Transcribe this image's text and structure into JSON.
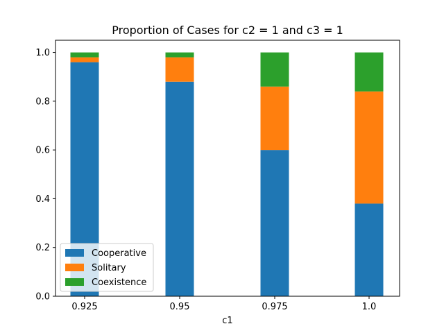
{
  "chart_data": {
    "type": "bar",
    "stacked": true,
    "title": "Proportion of Cases for c2 = 1 and c3 = 1",
    "xlabel": "c1",
    "ylabel": "",
    "categories": [
      "0.925",
      "0.95",
      "0.975",
      "1.0"
    ],
    "ylim": [
      0,
      1.05
    ],
    "yticks": [
      "0.0",
      "0.2",
      "0.4",
      "0.6",
      "0.8",
      "1.0"
    ],
    "grid": false,
    "legend_position": "lower-left",
    "series": [
      {
        "name": "Cooperative",
        "color": "#1f77b4",
        "values": [
          0.96,
          0.88,
          0.6,
          0.38
        ]
      },
      {
        "name": "Solitary",
        "color": "#ff7f0e",
        "values": [
          0.02,
          0.1,
          0.26,
          0.46
        ]
      },
      {
        "name": "Coexistence",
        "color": "#2ca02c",
        "values": [
          0.02,
          0.02,
          0.14,
          0.16
        ]
      }
    ]
  }
}
